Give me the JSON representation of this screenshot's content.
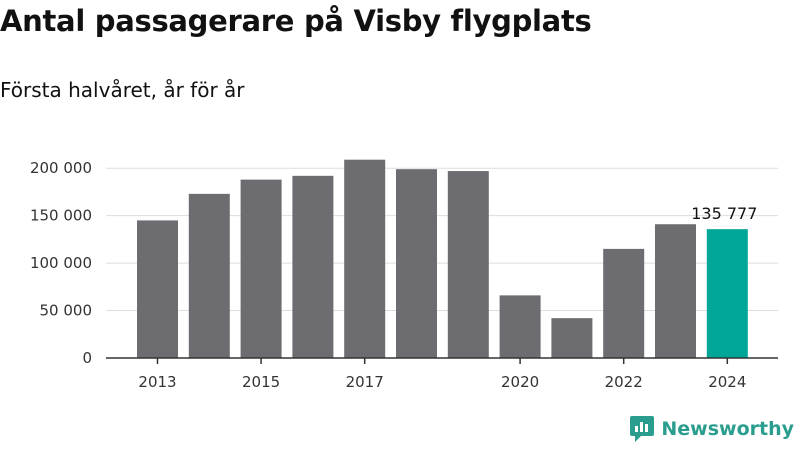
{
  "header": {
    "title": "Antal passagerare på Visby flygplats",
    "subtitle": "Första halvåret, år för år"
  },
  "brand": {
    "name": "Newsworthy"
  },
  "colors": {
    "bar": "#6d6c70",
    "highlight": "#00a698",
    "grid": "#dddddd",
    "axis": "#333333",
    "brand": "#2a9d8f"
  },
  "chart_data": {
    "type": "bar",
    "title": "Antal passagerare på Visby flygplats",
    "subtitle": "Första halvåret, år för år",
    "categories": [
      "2013",
      "2014",
      "2015",
      "2016",
      "2017",
      "2018",
      "2019",
      "2020",
      "2021",
      "2022",
      "2023",
      "2024"
    ],
    "values": [
      145000,
      173000,
      188000,
      192000,
      209000,
      199000,
      197000,
      66000,
      42000,
      115000,
      141000,
      135777
    ],
    "x_tick_labels": [
      "2013",
      "2015",
      "2017",
      "2020",
      "2022",
      "2024"
    ],
    "y_ticks": [
      0,
      50000,
      100000,
      150000,
      200000
    ],
    "y_tick_labels": [
      "0",
      "50 000",
      "100 000",
      "150 000",
      "200 000"
    ],
    "ylim": [
      0,
      215000
    ],
    "highlight_index": 11,
    "data_labels": [
      {
        "index": 11,
        "text": "135 777"
      }
    ],
    "grid": true,
    "xlabel": "",
    "ylabel": ""
  }
}
